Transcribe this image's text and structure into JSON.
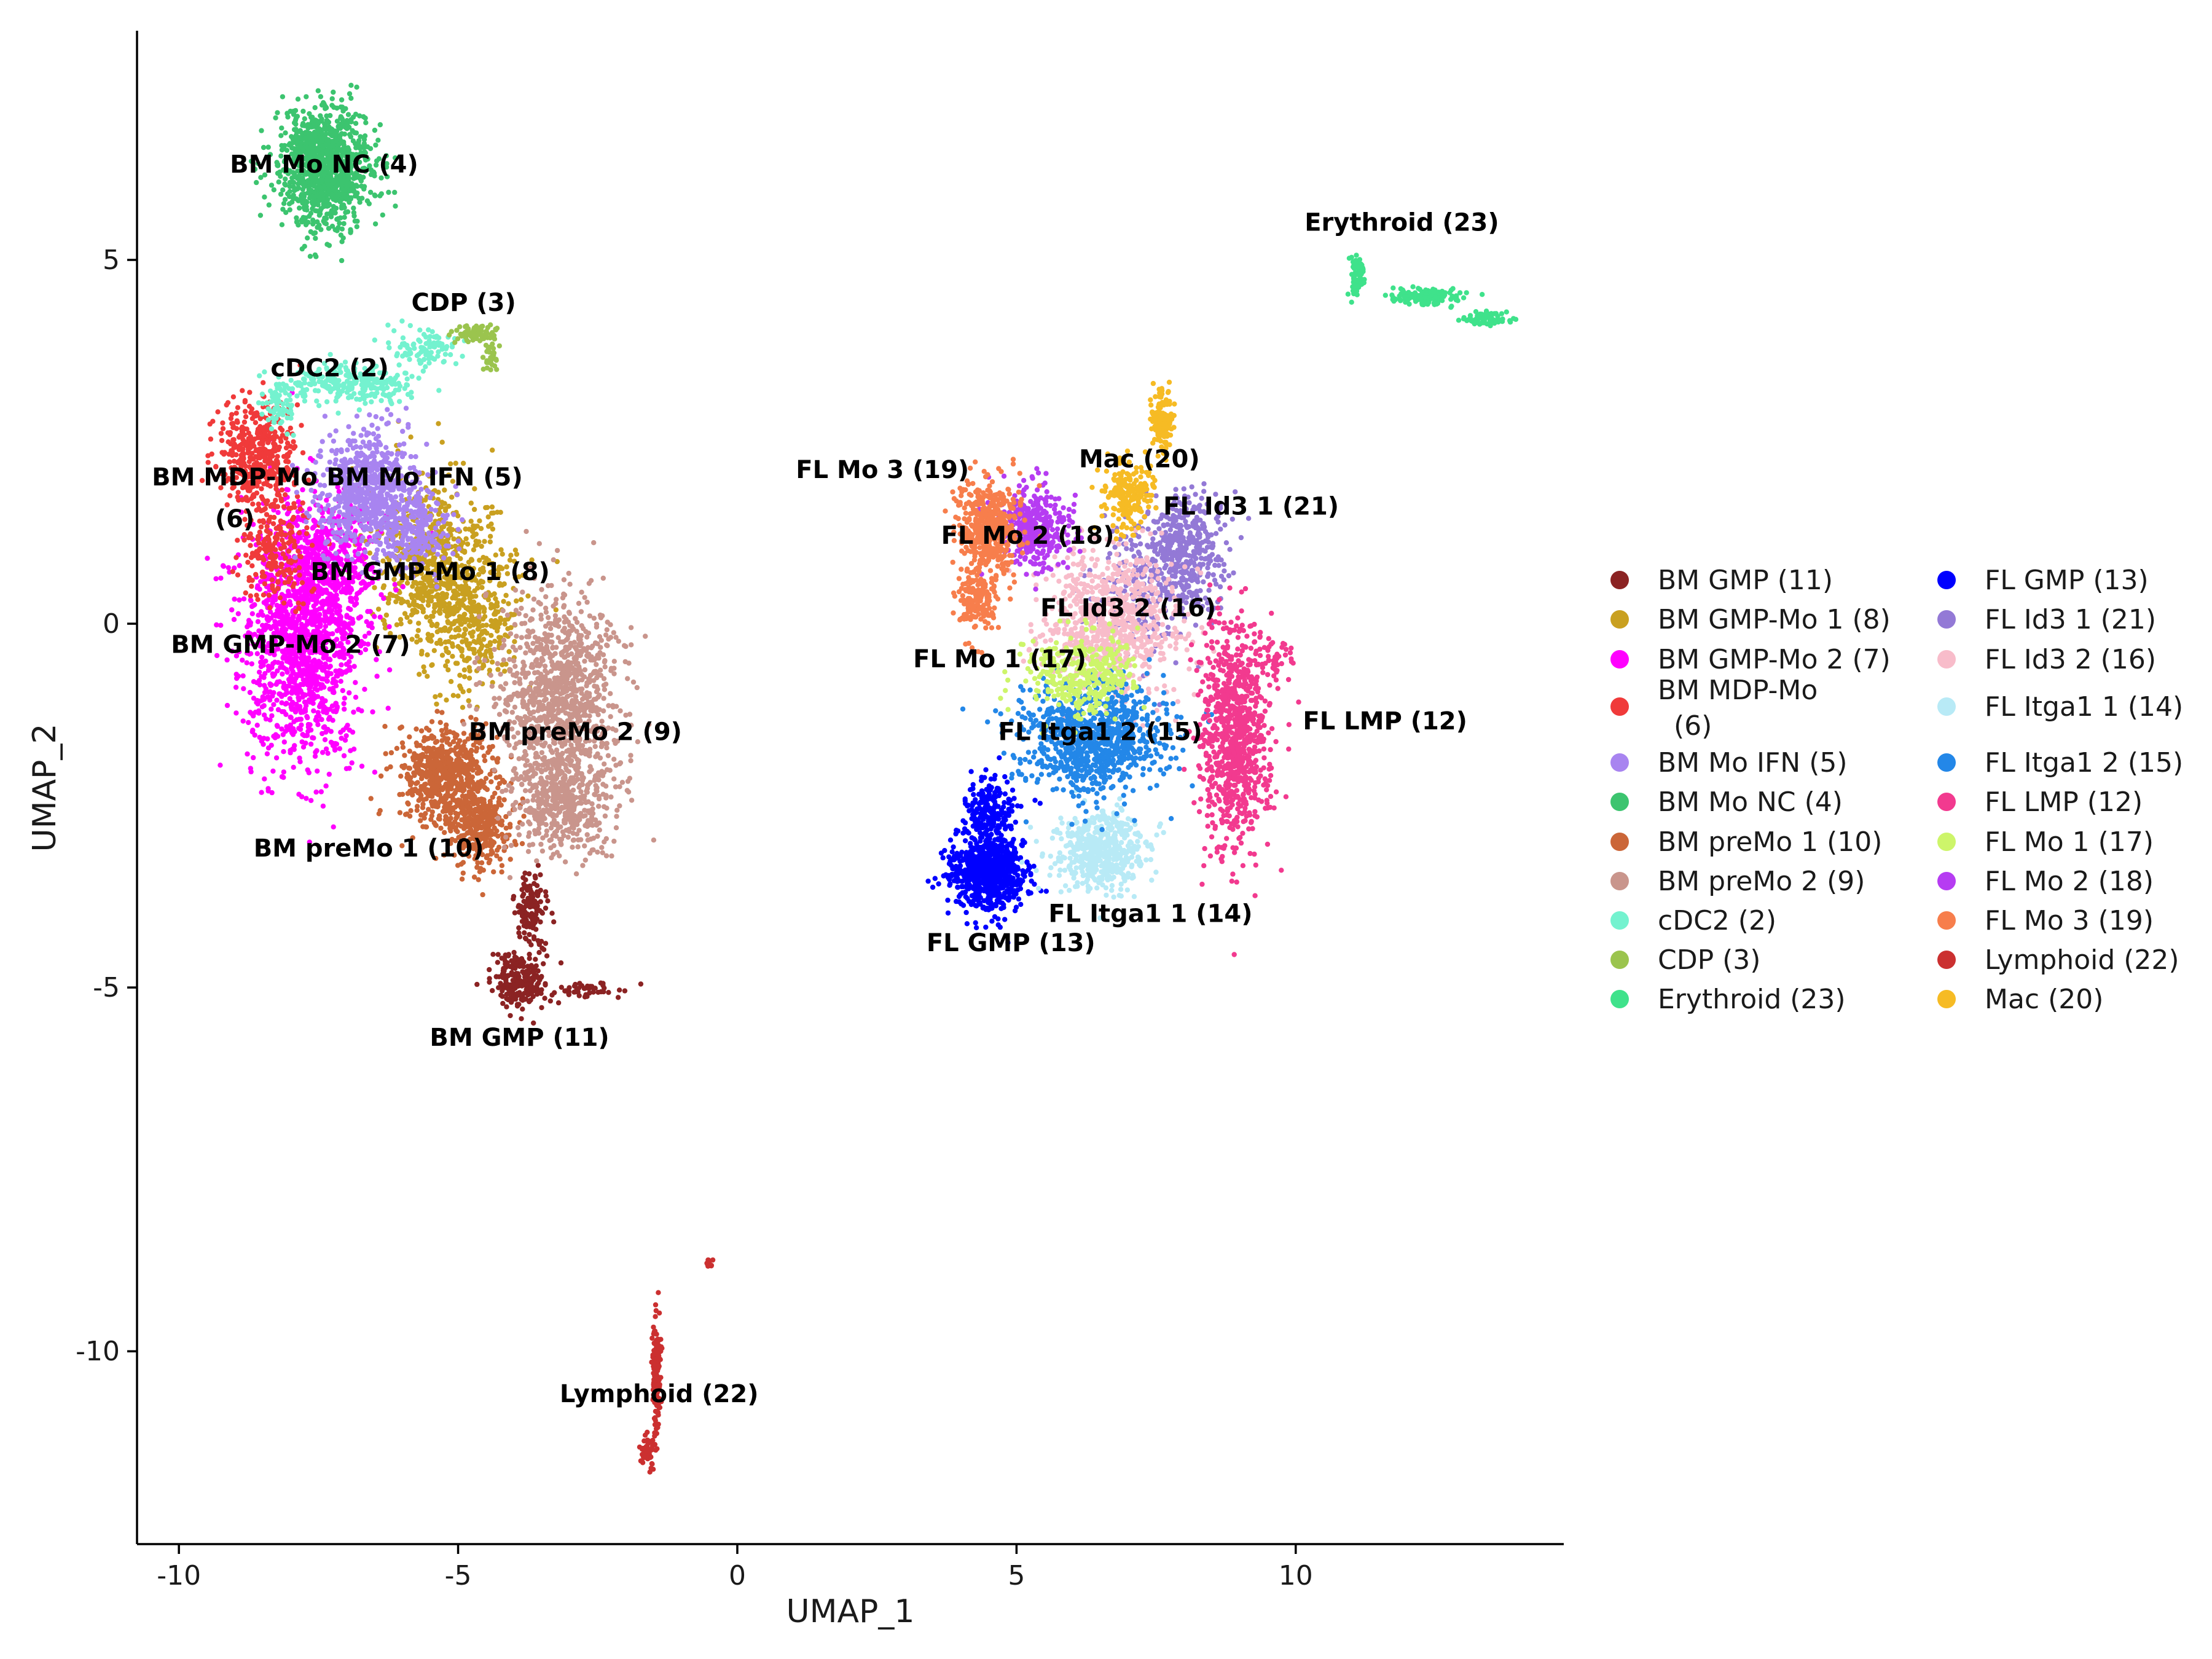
{
  "chart_data": {
    "type": "scatter",
    "xlabel": "UMAP_1",
    "ylabel": "UMAP_2",
    "xlim": [
      -10.75,
      14.8
    ],
    "ylim": [
      -12.65,
      8.15
    ],
    "xticks": [
      -10,
      -5,
      0,
      5,
      10
    ],
    "xtick_labels": [
      "-10",
      "-5",
      "0",
      "5",
      "10"
    ],
    "yticks": [
      -10,
      -5,
      0,
      5
    ],
    "ytick_labels": [
      "-10",
      "-5",
      "0",
      "5"
    ],
    "grid": false,
    "legend_position": "right",
    "series": [
      {
        "name": "BM GMP (11)",
        "color": "#8B2323",
        "label": "BM GMP (11)",
        "label_pos": [
          -3.9,
          -5.8
        ],
        "blobs": [
          [
            -3.7,
            -3.9,
            0.25,
            0.45,
            140
          ],
          [
            -3.9,
            -4.9,
            0.4,
            0.4,
            220
          ],
          [
            -2.8,
            -5.05,
            0.7,
            0.12,
            50
          ]
        ]
      },
      {
        "name": "BM GMP-Mo 1 (8)",
        "color": "#C9A020",
        "label": "BM GMP-Mo 1 (8)",
        "label_pos": [
          -5.5,
          0.6
        ],
        "blobs": [
          [
            -5.4,
            0.8,
            1.05,
            1.1,
            650
          ],
          [
            -4.7,
            0.0,
            0.7,
            0.9,
            300
          ]
        ]
      },
      {
        "name": "BM GMP-Mo 2 (7)",
        "color": "#FF00FF",
        "label": "BM GMP-Mo 2 (7)",
        "label_pos": [
          -8.0,
          -0.4
        ],
        "blobs": [
          [
            -7.8,
            -0.2,
            0.95,
            1.5,
            1400
          ],
          [
            -7.3,
            0.9,
            0.9,
            0.9,
            400
          ]
        ]
      },
      {
        "name": "BM MDP-Mo (6)",
        "color": "#F03A3A",
        "label": "BM MDP-Mo\n(6)",
        "label_pos": [
          -9.0,
          1.9
        ],
        "blobs": [
          [
            -8.6,
            2.3,
            0.65,
            0.7,
            450
          ],
          [
            -8.3,
            1.0,
            0.55,
            0.6,
            200
          ]
        ]
      },
      {
        "name": "BM Mo IFN (5)",
        "color": "#A884F0",
        "label": "BM Mo IFN (5)",
        "label_pos": [
          -5.6,
          1.9
        ],
        "blobs": [
          [
            -6.6,
            1.8,
            0.8,
            0.8,
            700
          ],
          [
            -5.7,
            1.3,
            0.5,
            0.5,
            200
          ]
        ]
      },
      {
        "name": "BM Mo NC (4)",
        "color": "#3CC46F",
        "label": "BM Mo NC (4)",
        "label_pos": [
          -7.4,
          6.2
        ],
        "blobs": [
          [
            -7.4,
            6.3,
            0.75,
            0.75,
            1100
          ]
        ]
      },
      {
        "name": "BM preMo 1 (10)",
        "color": "#CB6638",
        "label": "BM preMo 1 (10)",
        "label_pos": [
          -6.6,
          -3.2
        ],
        "blobs": [
          [
            -5.2,
            -2.1,
            0.75,
            0.6,
            650
          ],
          [
            -4.6,
            -2.8,
            0.55,
            0.55,
            300
          ]
        ]
      },
      {
        "name": "BM preMo 2 (9)",
        "color": "#C9958C",
        "label": "BM preMo 2 (9)",
        "label_pos": [
          -2.9,
          -1.6
        ],
        "blobs": [
          [
            -3.2,
            -1.0,
            1.0,
            1.2,
            1000
          ],
          [
            -3.1,
            -2.4,
            0.8,
            0.7,
            500
          ]
        ]
      },
      {
        "name": "cDC2 (2)",
        "color": "#74F2CF",
        "label": "cDC2 (2)",
        "label_pos": [
          -7.3,
          3.4
        ],
        "blobs": [
          [
            -6.9,
            3.3,
            1.0,
            0.25,
            250
          ],
          [
            -5.6,
            3.8,
            0.5,
            0.25,
            100
          ],
          [
            -8.2,
            3.0,
            0.3,
            0.3,
            70
          ]
        ]
      },
      {
        "name": "CDP (3)",
        "color": "#9BC44E",
        "label": "CDP (3)",
        "label_pos": [
          -4.9,
          4.3
        ],
        "blobs": [
          [
            -4.7,
            4.0,
            0.3,
            0.1,
            80
          ],
          [
            -4.4,
            3.7,
            0.1,
            0.2,
            40
          ]
        ]
      },
      {
        "name": "Erythroid (23)",
        "color": "#3FE28B",
        "label": "Erythroid (23)",
        "label_pos": [
          11.9,
          5.4
        ],
        "blobs": [
          [
            11.1,
            4.8,
            0.12,
            0.25,
            80
          ],
          [
            12.3,
            4.5,
            0.6,
            0.1,
            150
          ],
          [
            13.4,
            4.2,
            0.35,
            0.08,
            90
          ]
        ]
      },
      {
        "name": "FL GMP (13)",
        "color": "#0000FF",
        "label": "FL GMP (13)",
        "label_pos": [
          4.9,
          -4.5
        ],
        "blobs": [
          [
            4.5,
            -3.4,
            0.6,
            0.45,
            800
          ],
          [
            4.5,
            -2.6,
            0.4,
            0.4,
            200
          ]
        ]
      },
      {
        "name": "FL Id3 1 (21)",
        "color": "#9379D6",
        "label": "FL Id3 1 (21)",
        "label_pos": [
          9.2,
          1.5
        ],
        "blobs": [
          [
            8.0,
            1.0,
            0.7,
            0.7,
            400
          ],
          [
            7.3,
            0.5,
            0.9,
            0.9,
            200
          ]
        ]
      },
      {
        "name": "FL Id3 2 (16)",
        "color": "#F8BCCA",
        "label": "FL Id3 2 (16)",
        "label_pos": [
          7.0,
          0.1
        ],
        "blobs": [
          [
            6.7,
            0.0,
            1.1,
            0.9,
            800
          ]
        ]
      },
      {
        "name": "FL Itga1 1 (14)",
        "color": "#B8EAF6",
        "label": "FL Itga1 1 (14)",
        "label_pos": [
          7.4,
          -4.1
        ],
        "blobs": [
          [
            6.5,
            -3.1,
            0.8,
            0.5,
            500
          ]
        ]
      },
      {
        "name": "FL Itga1 2 (15)",
        "color": "#2387E8",
        "label": "FL Itga1 2 (15)",
        "label_pos": [
          6.5,
          -1.6
        ],
        "blobs": [
          [
            6.4,
            -1.6,
            1.2,
            0.7,
            900
          ]
        ]
      },
      {
        "name": "FL LMP (12)",
        "color": "#F23A8F",
        "label": "FL LMP (12)",
        "label_pos": [
          11.6,
          -1.45
        ],
        "blobs": [
          [
            8.9,
            -1.5,
            0.55,
            1.4,
            900
          ],
          [
            9.6,
            -0.5,
            0.3,
            0.25,
            50
          ]
        ]
      },
      {
        "name": "FL Mo 1 (17)",
        "color": "#CDF56A",
        "label": "FL Mo 1 (17)",
        "label_pos": [
          4.7,
          -0.6
        ],
        "blobs": [
          [
            6.2,
            -0.7,
            0.9,
            0.5,
            350
          ]
        ]
      },
      {
        "name": "FL Mo 2 (18)",
        "color": "#B63CF2",
        "label": "FL Mo 2 (18)",
        "label_pos": [
          5.2,
          1.1
        ],
        "blobs": [
          [
            5.3,
            1.3,
            0.6,
            0.5,
            400
          ]
        ]
      },
      {
        "name": "FL Mo 3 (19)",
        "color": "#F77E4C",
        "label": "FL Mo 3 (19)",
        "label_pos": [
          2.6,
          2.0
        ],
        "blobs": [
          [
            4.5,
            1.3,
            0.5,
            0.6,
            500
          ],
          [
            4.3,
            0.3,
            0.3,
            0.4,
            150
          ]
        ]
      },
      {
        "name": "Lymphoid (22)",
        "color": "#CB3030",
        "label": "Lymphoid (22)",
        "label_pos": [
          -1.4,
          -10.7
        ],
        "blobs": [
          [
            -1.45,
            -10.3,
            0.06,
            0.65,
            160
          ],
          [
            -1.6,
            -11.4,
            0.12,
            0.2,
            60
          ],
          [
            -0.5,
            -8.8,
            0.05,
            0.06,
            12
          ]
        ]
      },
      {
        "name": "Mac (20)",
        "color": "#F6BB24",
        "label": "Mac (20)",
        "label_pos": [
          7.2,
          2.15
        ],
        "blobs": [
          [
            7.6,
            2.8,
            0.18,
            0.4,
            150
          ],
          [
            7.0,
            1.8,
            0.4,
            0.4,
            200
          ]
        ]
      }
    ]
  }
}
